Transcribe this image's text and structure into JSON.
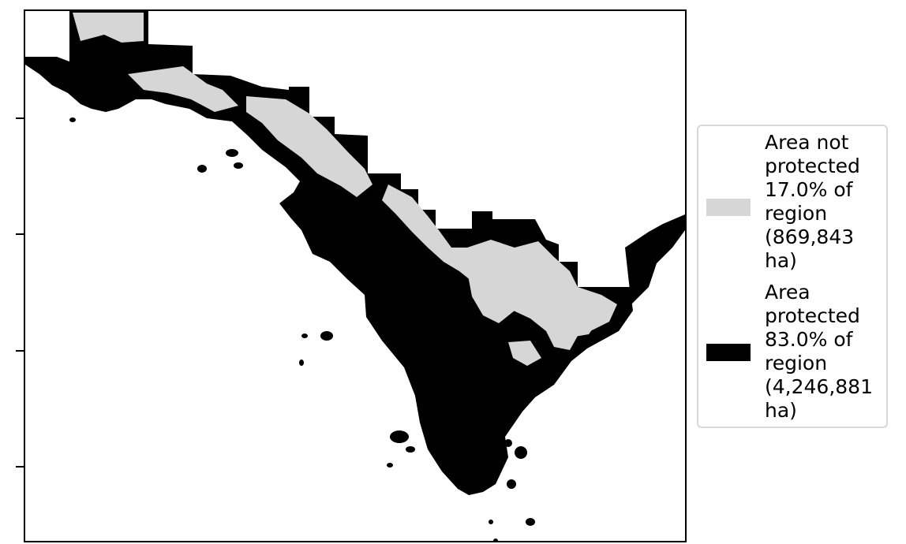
{
  "map": {
    "colors": {
      "not_protected": "#d6d6d6",
      "protected": "#000000",
      "background": "#ffffff"
    }
  },
  "legend": {
    "placement": "right",
    "entries": [
      {
        "label": "Area not\nprotected\n17.0% of\nregion\n(869,843\nha)",
        "color": "#d6d6d6"
      },
      {
        "label": "Area\nprotected\n83.0% of\nregion\n(4,246,881\nha)",
        "color": "#000000"
      }
    ]
  }
}
